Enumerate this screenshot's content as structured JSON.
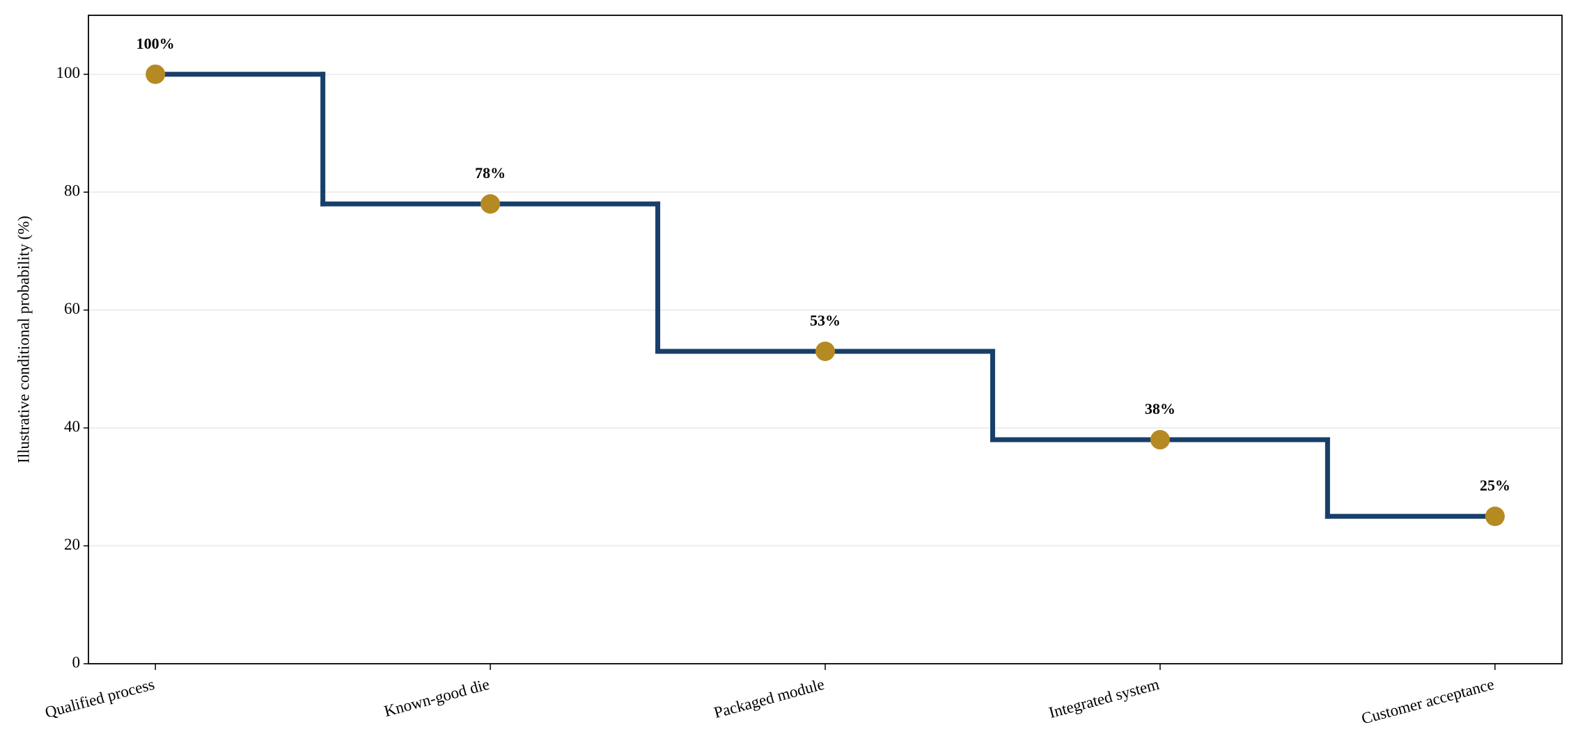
{
  "chart_data": {
    "type": "step",
    "y_label": "Illustrative conditional probability (%)",
    "categories": [
      "Qualified process",
      "Known-good die",
      "Packaged module",
      "Integrated system",
      "Customer acceptance"
    ],
    "values": [
      100,
      78,
      53,
      38,
      25
    ],
    "value_labels": [
      "100%",
      "78%",
      "53%",
      "38%",
      "25%"
    ],
    "line_color": "#173f6a",
    "marker_color": "#b58a22",
    "ylim": [
      0,
      110
    ],
    "yticks": [
      0,
      20,
      40,
      60,
      80,
      100
    ],
    "grid": true
  }
}
